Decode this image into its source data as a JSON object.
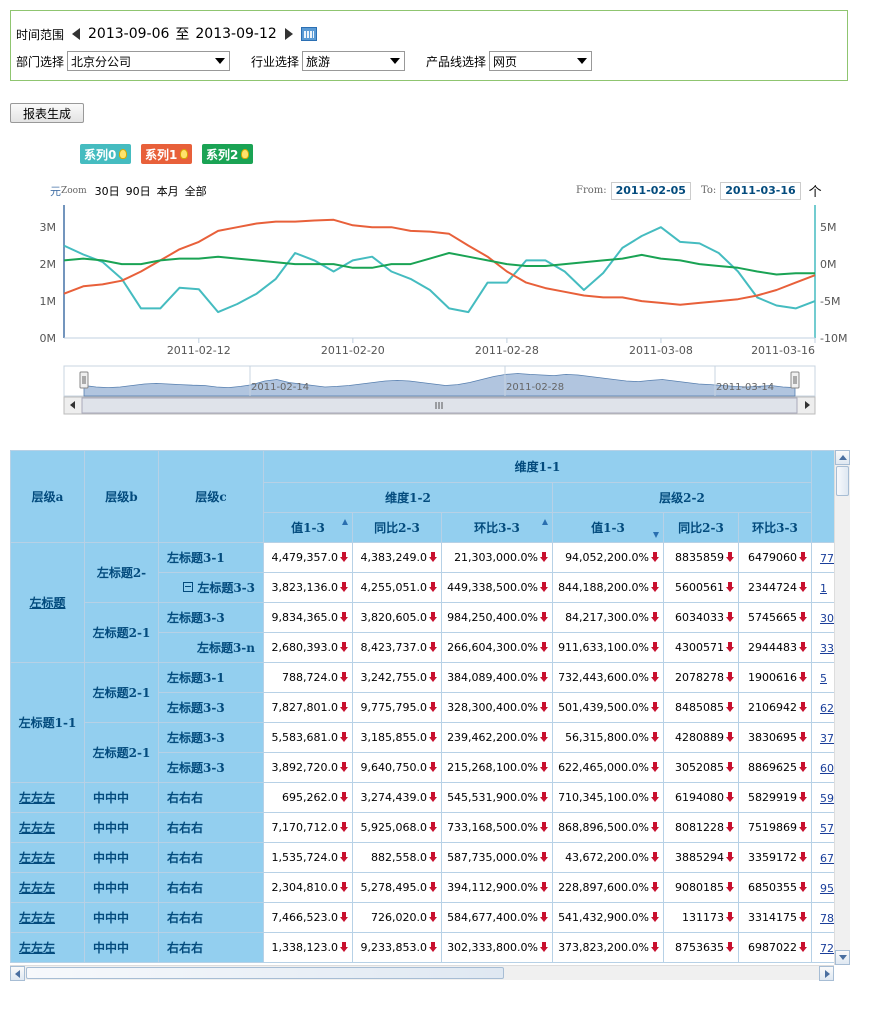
{
  "filters": {
    "time_label": "时间范围",
    "date_from": "2013-09-06",
    "date_sep": "至",
    "date_to": "2013-09-12",
    "dept_label": "部门选择",
    "dept_value": "北京分公司",
    "industry_label": "行业选择",
    "industry_value": "旅游",
    "product_label": "产品线选择",
    "product_value": "网页"
  },
  "generate_button": "报表生成",
  "chart": {
    "legend": [
      {
        "name": "系列0",
        "color": "#45bcc0"
      },
      {
        "name": "系列1",
        "color": "#e8603a"
      },
      {
        "name": "系列2",
        "color": "#1aa354"
      }
    ],
    "zoom_unit": "元",
    "zoom_label": "Zoom",
    "zoom_buttons": [
      "30日",
      "90日",
      "本月",
      "全部"
    ],
    "from_label": "From:",
    "from_value": "2011-02-05",
    "to_label": "To:",
    "to_value": "2011-03-16",
    "extra_label": "个"
  },
  "chart_data": {
    "type": "line",
    "x": [
      "2011-02-05",
      "2011-02-06",
      "2011-02-07",
      "2011-02-08",
      "2011-02-09",
      "2011-02-10",
      "2011-02-11",
      "2011-02-12",
      "2011-02-13",
      "2011-02-14",
      "2011-02-15",
      "2011-02-16",
      "2011-02-17",
      "2011-02-18",
      "2011-02-19",
      "2011-02-20",
      "2011-02-21",
      "2011-02-22",
      "2011-02-23",
      "2011-02-24",
      "2011-02-25",
      "2011-02-26",
      "2011-02-27",
      "2011-02-28",
      "2011-03-01",
      "2011-03-02",
      "2011-03-03",
      "2011-03-04",
      "2011-03-05",
      "2011-03-06",
      "2011-03-07",
      "2011-03-08",
      "2011-03-09",
      "2011-03-10",
      "2011-03-11",
      "2011-03-12",
      "2011-03-13",
      "2011-03-14",
      "2011-03-15",
      "2011-03-16"
    ],
    "series": [
      {
        "name": "系列0",
        "axis": "right",
        "values": [
          2.5,
          1.3,
          0.3,
          -2.0,
          -6.0,
          -6.0,
          -3.2,
          -3.4,
          -6.5,
          -5.4,
          -4.0,
          -2.0,
          1.5,
          0.5,
          -1.0,
          0.5,
          1.0,
          -1.0,
          -2.0,
          -3.5,
          -6.0,
          -6.5,
          -2.5,
          -2.5,
          0.5,
          0.5,
          -1.0,
          -3.5,
          -1.2,
          2.2,
          3.8,
          5.0,
          3.0,
          2.8,
          1.5,
          -1.0,
          -4.5,
          -5.6,
          -6.0,
          -5.0
        ]
      },
      {
        "name": "系列1",
        "axis": "left",
        "values": [
          1.2,
          1.4,
          1.45,
          1.55,
          1.8,
          2.1,
          2.4,
          2.6,
          2.9,
          3.0,
          3.1,
          3.15,
          3.15,
          3.18,
          3.2,
          3.05,
          3.0,
          3.0,
          2.9,
          2.88,
          2.82,
          2.5,
          2.2,
          1.8,
          1.5,
          1.35,
          1.25,
          1.15,
          1.1,
          1.1,
          1.0,
          0.95,
          0.9,
          0.95,
          1.0,
          1.05,
          1.15,
          1.3,
          1.5,
          1.7
        ]
      },
      {
        "name": "系列2",
        "axis": "left",
        "values": [
          2.1,
          2.15,
          2.1,
          2.0,
          2.0,
          2.1,
          2.15,
          2.15,
          2.2,
          2.15,
          2.1,
          2.05,
          2.0,
          2.0,
          2.0,
          1.9,
          1.9,
          2.0,
          2.0,
          2.15,
          2.3,
          2.2,
          2.1,
          2.0,
          1.95,
          1.95,
          2.0,
          2.05,
          2.1,
          2.15,
          2.25,
          2.15,
          2.1,
          2.0,
          1.95,
          1.9,
          1.8,
          1.72,
          1.75,
          1.75
        ]
      }
    ],
    "y_left_ticks": [
      "0M",
      "1M",
      "2M",
      "3M"
    ],
    "y_left_range": [
      0,
      3.6
    ],
    "y_right_ticks": [
      "-10M",
      "-5M",
      "0M",
      "5M"
    ],
    "y_right_range": [
      -10,
      8
    ],
    "x_ticks": [
      "2011-02-12",
      "2011-02-20",
      "2011-02-28",
      "2011-03-08",
      "2011-03-16"
    ],
    "navigator_ticks": [
      "2011-02-14",
      "2011-02-28",
      "2011-03-14"
    ],
    "navigator_values": [
      0.35,
      0.3,
      0.28,
      0.3,
      0.35,
      0.4,
      0.42,
      0.4,
      0.38,
      0.36,
      0.35,
      0.3,
      0.28,
      0.32,
      0.38,
      0.5,
      0.55,
      0.45,
      0.4,
      0.35,
      0.3,
      0.32,
      0.35,
      0.4,
      0.45,
      0.5,
      0.52,
      0.5,
      0.45,
      0.4,
      0.35,
      0.38,
      0.45,
      0.55,
      0.65,
      0.72,
      0.75,
      0.72,
      0.7,
      0.68,
      0.72,
      0.7,
      0.65,
      0.6,
      0.55,
      0.5,
      0.48,
      0.52,
      0.55,
      0.5,
      0.45,
      0.4,
      0.38,
      0.35,
      0.32,
      0.3,
      0.32,
      0.35,
      0.3,
      0.28
    ]
  },
  "table": {
    "hdr": {
      "a": "层级a",
      "b": "层级b",
      "c": "层级c",
      "dim11": "维度1-1",
      "dim12": "维度1-2",
      "dim22": "层级2-2",
      "cols": [
        "值1-3",
        "同比2-3",
        "环比3-3",
        "值1-3",
        "同比2-3",
        "环比3-3"
      ]
    },
    "rows": [
      {
        "a": "左标题",
        "b": "左标题2-",
        "c": "左标题3-1",
        "v": [
          "4,479,357.0",
          "4,383,249.0",
          "21,303,000.0%",
          "94,052,200.0%",
          "8835859",
          "6479060"
        ],
        "x": "77"
      },
      {
        "c": "左标题3-3",
        "v": [
          "3,823,136.0",
          "4,255,051.0",
          "449,338,500.0%",
          "844,188,200.0%",
          "5600561",
          "2344724"
        ],
        "x": "1"
      },
      {
        "b": "左标题2-1",
        "c": "左标题3-3",
        "v": [
          "9,834,365.0",
          "3,820,605.0",
          "984,250,400.0%",
          "84,217,300.0%",
          "6034033",
          "5745665"
        ],
        "x": "30"
      },
      {
        "c": "左标题3-n",
        "v": [
          "2,680,393.0",
          "8,423,737.0",
          "266,604,300.0%",
          "911,633,100.0%",
          "4300571",
          "2944483"
        ],
        "x": "33"
      },
      {
        "a": "左标题1-1",
        "b": "左标题2-1",
        "c": "左标题3-1",
        "v": [
          "788,724.0",
          "3,242,755.0",
          "384,089,400.0%",
          "732,443,600.0%",
          "2078278",
          "1900616"
        ],
        "x": "5"
      },
      {
        "c": "左标题3-3",
        "v": [
          "7,827,801.0",
          "9,775,795.0",
          "328,300,400.0%",
          "501,439,500.0%",
          "8485085",
          "2106942"
        ],
        "x": "62"
      },
      {
        "b": "左标题2-1",
        "c": "左标题3-3",
        "v": [
          "5,583,681.0",
          "3,185,855.0",
          "239,462,200.0%",
          "56,315,800.0%",
          "4280889",
          "3830695"
        ],
        "x": "37"
      },
      {
        "c": "左标题3-3",
        "v": [
          "3,892,720.0",
          "9,640,750.0",
          "215,268,100.0%",
          "622,465,000.0%",
          "3052085",
          "8869625"
        ],
        "x": "60"
      },
      {
        "a": "左左左",
        "b": "中中中",
        "c": "右右右",
        "v": [
          "695,262.0",
          "3,274,439.0",
          "545,531,900.0%",
          "710,345,100.0%",
          "6194080",
          "5829919"
        ],
        "x": "59"
      },
      {
        "a": "左左左",
        "b": "中中中",
        "c": "右右右",
        "v": [
          "7,170,712.0",
          "5,925,068.0",
          "733,168,500.0%",
          "868,896,500.0%",
          "8081228",
          "7519869"
        ],
        "x": "57"
      },
      {
        "a": "左左左",
        "b": "中中中",
        "c": "右右右",
        "v": [
          "1,535,724.0",
          "882,558.0",
          "587,735,000.0%",
          "43,672,200.0%",
          "3885294",
          "3359172"
        ],
        "x": "67"
      },
      {
        "a": "左左左",
        "b": "中中中",
        "c": "右右右",
        "v": [
          "2,304,810.0",
          "5,278,495.0",
          "394,112,900.0%",
          "228,897,600.0%",
          "9080185",
          "6850355"
        ],
        "x": "95"
      },
      {
        "a": "左左左",
        "b": "中中中",
        "c": "右右右",
        "v": [
          "7,466,523.0",
          "726,020.0",
          "584,677,400.0%",
          "541,432,900.0%",
          "131173",
          "3314175"
        ],
        "x": "78"
      },
      {
        "a": "左左左",
        "b": "中中中",
        "c": "右右右",
        "v": [
          "1,338,123.0",
          "9,233,853.0",
          "302,333,800.0%",
          "373,823,200.0%",
          "8753635",
          "6987022"
        ],
        "x": "72"
      }
    ]
  }
}
